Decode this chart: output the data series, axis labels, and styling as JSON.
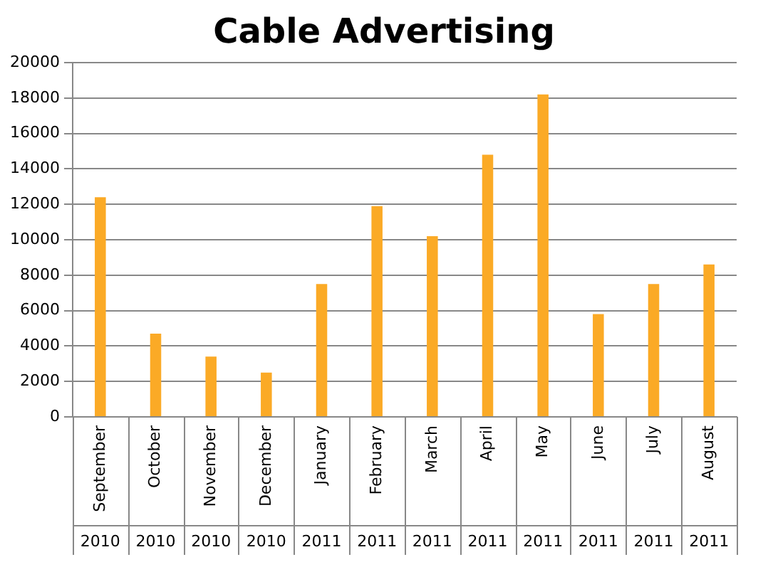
{
  "chart_data": {
    "type": "bar",
    "title": "Cable Advertising",
    "categories": [
      "September 2010",
      "October 2010",
      "November 2010",
      "December 2010",
      "January 2011",
      "February 2011",
      "March 2011",
      "April 2011",
      "May 2011",
      "June 2011",
      "July 2011",
      "August 2011"
    ],
    "values": [
      12400,
      4700,
      3400,
      2500,
      7500,
      11900,
      10200,
      14800,
      18200,
      5800,
      7500,
      8600
    ],
    "color": "#fbaa26",
    "ylim": [
      0,
      20000
    ],
    "yticks": [
      0,
      2000,
      4000,
      6000,
      8000,
      10000,
      12000,
      14000,
      16000,
      18000,
      20000
    ],
    "grid": "y",
    "legend": false
  }
}
